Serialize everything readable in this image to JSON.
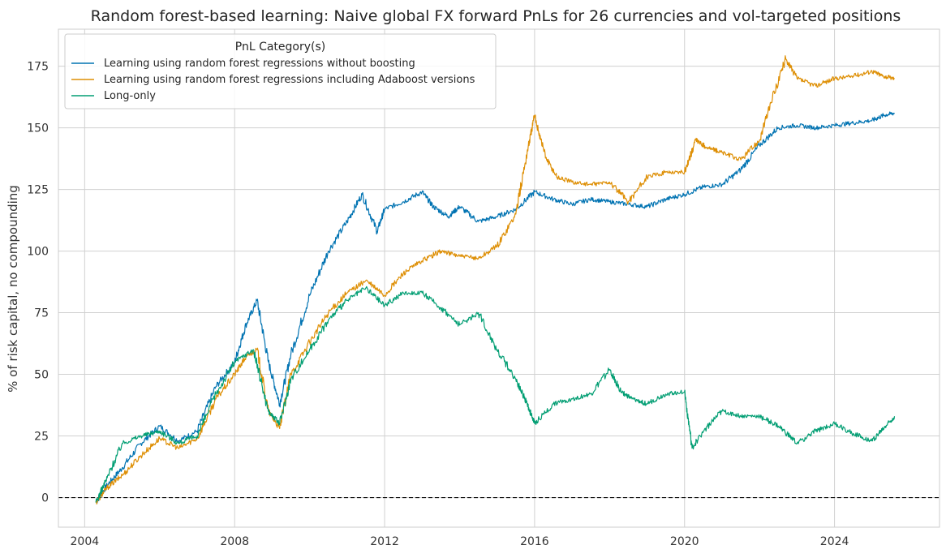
{
  "chart_data": {
    "type": "line",
    "title": "Random forest-based learning: Naive global FX forward PnLs for 26 currencies and vol-targeted positions",
    "xlabel": "",
    "ylabel": "% of risk capital, no compounding",
    "xlim": [
      2003.3,
      2026.8
    ],
    "ylim": [
      -12,
      190
    ],
    "x_ticks": [
      "2004",
      "2008",
      "2012",
      "2016",
      "2020",
      "2024"
    ],
    "y_ticks": [
      "0",
      "25",
      "50",
      "75",
      "100",
      "125",
      "150",
      "175"
    ],
    "grid": true,
    "zero_line": true,
    "legend": {
      "title": "PnL Category(s)",
      "position": "top-left"
    },
    "series": [
      {
        "name": "Learning using random forest regressions without boosting",
        "color": "#0173b2",
        "x": [
          2004.3,
          2004.6,
          2005.0,
          2005.5,
          2006.0,
          2006.5,
          2007.0,
          2007.5,
          2008.0,
          2008.3,
          2008.6,
          2008.9,
          2009.2,
          2009.5,
          2010.0,
          2010.5,
          2011.0,
          2011.4,
          2011.8,
          2012.0,
          2012.5,
          2013.0,
          2013.3,
          2013.7,
          2014.0,
          2014.5,
          2015.0,
          2015.5,
          2016.0,
          2016.5,
          2017.0,
          2017.5,
          2018.0,
          2018.5,
          2019.0,
          2019.5,
          2020.0,
          2020.5,
          2021.0,
          2021.5,
          2022.0,
          2022.5,
          2023.0,
          2023.5,
          2024.0,
          2024.5,
          2025.0,
          2025.3,
          2025.6
        ],
        "values": [
          -2,
          5,
          12,
          22,
          29,
          23,
          27,
          45,
          55,
          70,
          80,
          55,
          38,
          58,
          82,
          100,
          112,
          123,
          108,
          117,
          120,
          124,
          118,
          114,
          118,
          112,
          114,
          117,
          124,
          121,
          119,
          121,
          120,
          119,
          118,
          121,
          123,
          126,
          127,
          133,
          143,
          150,
          151,
          150,
          151,
          152,
          153,
          155,
          156
        ]
      },
      {
        "name": "Learning using random forest regressions including Adaboost versions",
        "color": "#de8f05",
        "x": [
          2004.3,
          2004.6,
          2005.0,
          2005.5,
          2006.0,
          2006.5,
          2007.0,
          2007.5,
          2008.0,
          2008.3,
          2008.6,
          2008.9,
          2009.2,
          2009.5,
          2010.0,
          2010.5,
          2011.0,
          2011.5,
          2012.0,
          2012.5,
          2013.0,
          2013.5,
          2014.0,
          2014.5,
          2015.0,
          2015.5,
          2015.8,
          2016.0,
          2016.3,
          2016.6,
          2017.0,
          2017.5,
          2018.0,
          2018.5,
          2019.0,
          2019.5,
          2020.0,
          2020.3,
          2020.6,
          2021.0,
          2021.5,
          2022.0,
          2022.3,
          2022.7,
          2023.0,
          2023.5,
          2024.0,
          2024.5,
          2025.0,
          2025.3,
          2025.6
        ],
        "values": [
          -2,
          4,
          9,
          17,
          24,
          20,
          24,
          40,
          50,
          57,
          60,
          35,
          28,
          50,
          63,
          75,
          83,
          88,
          82,
          91,
          96,
          100,
          98,
          97,
          102,
          115,
          140,
          155,
          138,
          130,
          128,
          127,
          128,
          120,
          130,
          132,
          132,
          145,
          142,
          140,
          137,
          145,
          160,
          178,
          170,
          167,
          170,
          171,
          173,
          171,
          170
        ]
      },
      {
        "name": "Long-only",
        "color": "#029e73",
        "x": [
          2004.3,
          2004.6,
          2005.0,
          2005.5,
          2006.0,
          2006.5,
          2007.0,
          2007.5,
          2008.0,
          2008.5,
          2008.9,
          2009.2,
          2009.5,
          2010.0,
          2010.5,
          2011.0,
          2011.5,
          2012.0,
          2012.5,
          2013.0,
          2013.5,
          2014.0,
          2014.5,
          2015.0,
          2015.5,
          2015.8,
          2016.0,
          2016.5,
          2017.0,
          2017.5,
          2018.0,
          2018.3,
          2018.6,
          2019.0,
          2019.5,
          2020.0,
          2020.2,
          2020.5,
          2021.0,
          2021.5,
          2022.0,
          2022.5,
          2023.0,
          2023.5,
          2024.0,
          2024.5,
          2025.0,
          2025.3,
          2025.6
        ],
        "values": [
          -2,
          8,
          22,
          25,
          27,
          22,
          25,
          42,
          55,
          60,
          35,
          30,
          48,
          60,
          72,
          80,
          85,
          78,
          83,
          83,
          77,
          70,
          75,
          60,
          48,
          38,
          30,
          38,
          40,
          42,
          52,
          43,
          40,
          38,
          42,
          43,
          20,
          27,
          35,
          33,
          33,
          29,
          22,
          27,
          30,
          26,
          23,
          28,
          33
        ]
      }
    ]
  }
}
